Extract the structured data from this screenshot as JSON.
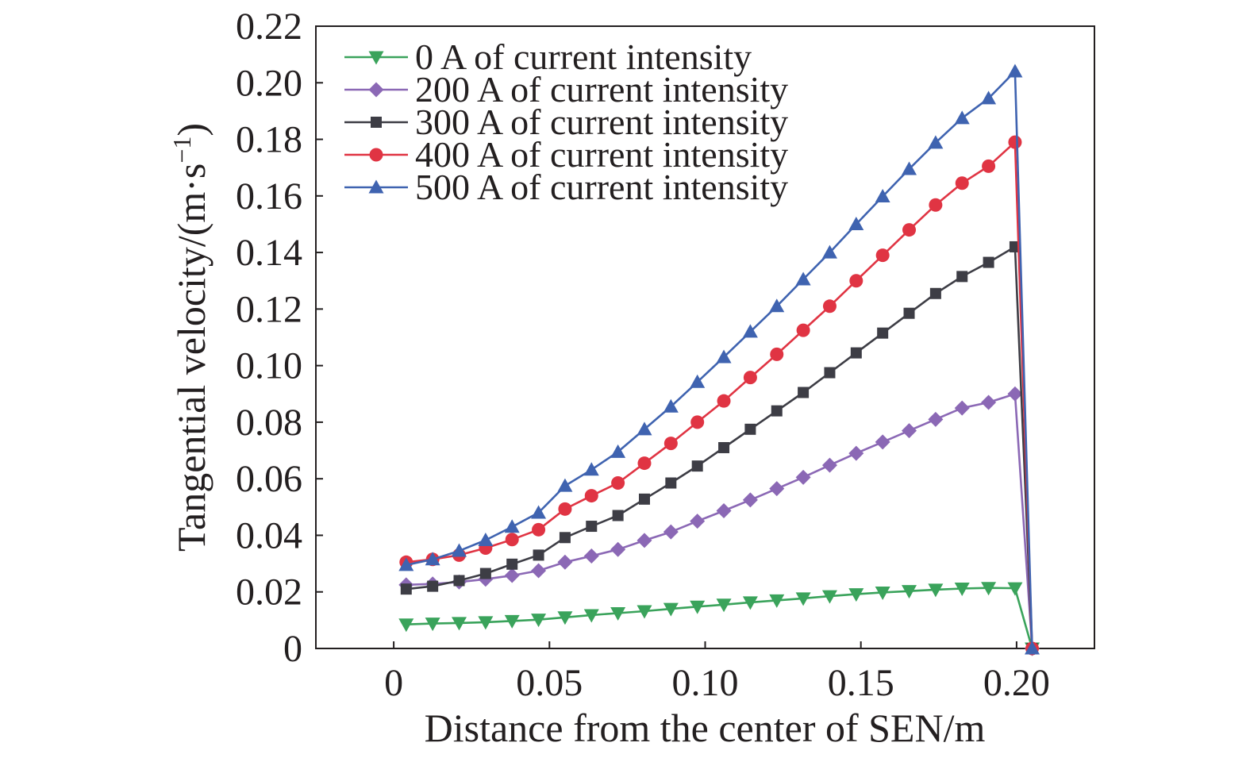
{
  "chart_data": {
    "type": "line",
    "xlabel": "Distance from the center of SEN/m",
    "ylabel_main": "Tangential velocity/(m·s",
    "ylabel_sup": "−1",
    "ylabel_close": ")",
    "xlim": [
      -0.025,
      0.225
    ],
    "ylim": [
      0,
      0.22
    ],
    "xticks": [
      0,
      0.05,
      0.1,
      0.15,
      0.2
    ],
    "xtick_labels": [
      "0",
      "0.05",
      "0.10",
      "0.15",
      "0.20"
    ],
    "yticks": [
      0,
      0.02,
      0.04,
      0.06,
      0.08,
      0.1,
      0.12,
      0.14,
      0.16,
      0.18,
      0.2,
      0.22
    ],
    "ytick_labels": [
      "0",
      "0.02",
      "0.04",
      "0.06",
      "0.08",
      "0.10",
      "0.12",
      "0.14",
      "0.16",
      "0.18",
      "0.20",
      "0.22"
    ],
    "grid": false,
    "legend_position": "top-left",
    "x": [
      0.004,
      0.0125,
      0.021,
      0.0295,
      0.038,
      0.0465,
      0.055,
      0.0635,
      0.072,
      0.0805,
      0.089,
      0.0975,
      0.106,
      0.1145,
      0.123,
      0.1315,
      0.14,
      0.1485,
      0.157,
      0.1655,
      0.174,
      0.1825,
      0.191,
      0.1995,
      0.205
    ],
    "series": [
      {
        "name": "0 A of current intensity",
        "color": "#3aa35b",
        "marker": "triangle-down",
        "values": [
          0.0085,
          0.0088,
          0.009,
          0.0093,
          0.0097,
          0.0102,
          0.011,
          0.0118,
          0.0125,
          0.0132,
          0.014,
          0.0148,
          0.0155,
          0.0163,
          0.017,
          0.0177,
          0.0185,
          0.0192,
          0.0198,
          0.0203,
          0.0208,
          0.0212,
          0.0214,
          0.0213,
          0.0
        ]
      },
      {
        "name": "200 A of current intensity",
        "color": "#8b68b5",
        "marker": "diamond",
        "values": [
          0.0225,
          0.0228,
          0.0235,
          0.0245,
          0.0258,
          0.0275,
          0.0305,
          0.0327,
          0.035,
          0.0382,
          0.0412,
          0.045,
          0.0487,
          0.0525,
          0.0565,
          0.0605,
          0.0648,
          0.069,
          0.073,
          0.077,
          0.081,
          0.085,
          0.087,
          0.09,
          0.0
        ]
      },
      {
        "name": "300 A of current intensity",
        "color": "#3d3d45",
        "marker": "square",
        "values": [
          0.021,
          0.022,
          0.024,
          0.0265,
          0.0298,
          0.033,
          0.0392,
          0.0432,
          0.047,
          0.0528,
          0.0585,
          0.0645,
          0.071,
          0.0775,
          0.084,
          0.0905,
          0.0975,
          0.1045,
          0.1115,
          0.1185,
          0.1255,
          0.1315,
          0.1365,
          0.142,
          0.0
        ]
      },
      {
        "name": "400 A of current intensity",
        "color": "#e03443",
        "marker": "circle",
        "values": [
          0.0305,
          0.0315,
          0.033,
          0.0355,
          0.0385,
          0.042,
          0.0493,
          0.054,
          0.0585,
          0.0655,
          0.0725,
          0.08,
          0.0875,
          0.0958,
          0.104,
          0.1125,
          0.121,
          0.13,
          0.139,
          0.148,
          0.1568,
          0.1645,
          0.1705,
          0.179,
          0.0
        ]
      },
      {
        "name": "500 A of current intensity",
        "color": "#3f63b0",
        "marker": "triangle-up",
        "values": [
          0.0295,
          0.0315,
          0.0345,
          0.0383,
          0.043,
          0.048,
          0.0575,
          0.0632,
          0.0695,
          0.0775,
          0.0855,
          0.0942,
          0.103,
          0.112,
          0.121,
          0.1305,
          0.14,
          0.15,
          0.1598,
          0.1695,
          0.1788,
          0.1875,
          0.1945,
          0.204,
          0.0
        ]
      }
    ]
  }
}
